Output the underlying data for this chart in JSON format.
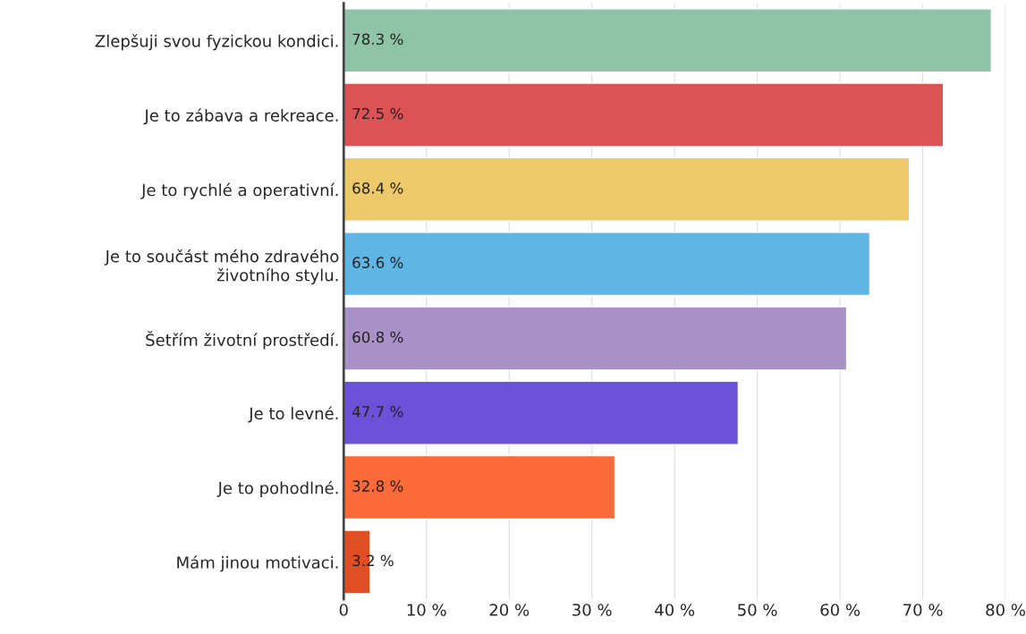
{
  "chart_data": {
    "type": "bar",
    "orientation": "horizontal",
    "categories": [
      "Zlepšuji svou fyzickou kondici.",
      "Je to zábava a rekreace.",
      "Je to rychlé a operativní.",
      "Je to součást mého zdravého\nživotního stylu.",
      "Šetřím životní prostředí.",
      "Je to levné.",
      "Je to pohodlné.",
      "Mám jinou motivaci."
    ],
    "values": [
      78.3,
      72.5,
      68.4,
      63.6,
      60.8,
      47.7,
      32.8,
      3.2
    ],
    "colors": [
      "#8fc4a8",
      "#dc5356",
      "#eec96a",
      "#5fb5e3",
      "#a990c7",
      "#6a52d9",
      "#fc6a3a",
      "#e04e24"
    ],
    "value_labels": [
      "78.3 %",
      "72.5 %",
      "68.4 %",
      "63.6 %",
      "60.8 %",
      "47.7 %",
      "32.8 %",
      "3.2 %"
    ],
    "xlim": [
      0,
      80
    ],
    "xticks": [
      0,
      {
        "value": 10,
        "label": "10 %"
      },
      {
        "value": 20,
        "label": "20 %"
      },
      {
        "value": 30,
        "label": "30 %"
      },
      {
        "value": 40,
        "label": "40 %"
      },
      {
        "value": 50,
        "label": "50 %"
      },
      {
        "value": 60,
        "label": "60 %"
      },
      {
        "value": 70,
        "label": "70 %"
      },
      {
        "value": 80,
        "label": "80 %"
      }
    ],
    "grid": "x"
  }
}
